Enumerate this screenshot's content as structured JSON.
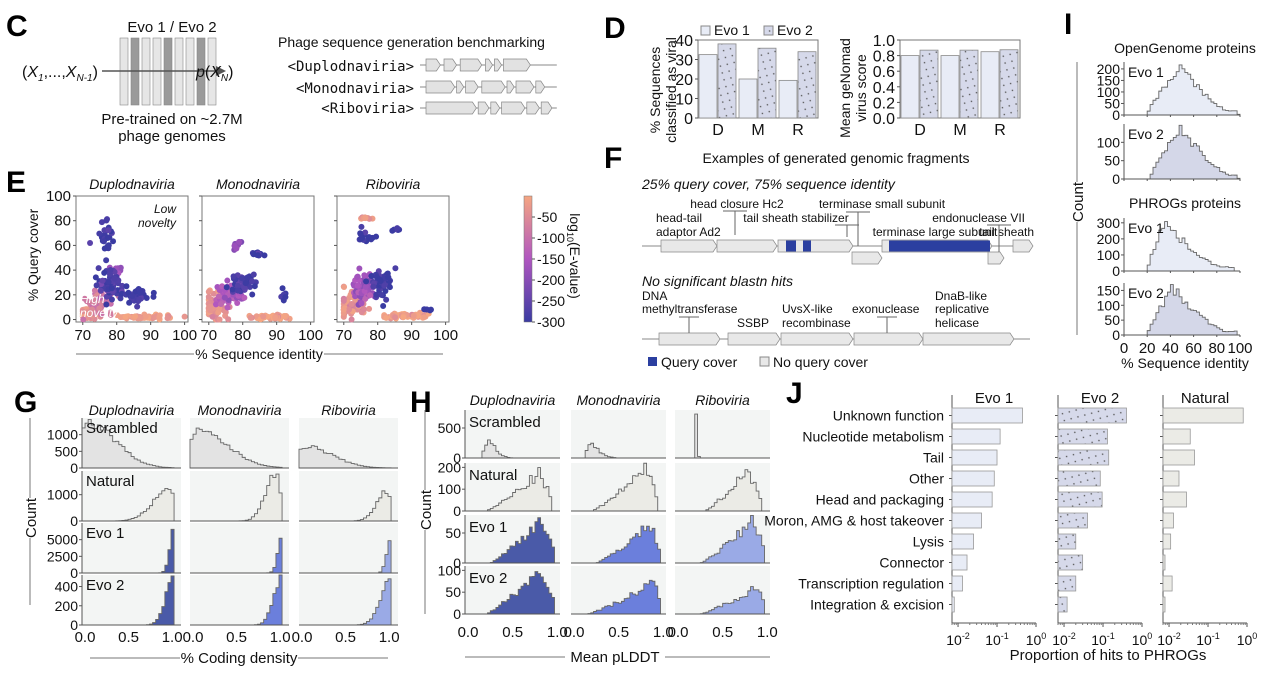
{
  "figure": {
    "panel_labels": [
      "C",
      "D",
      "E",
      "F",
      "G",
      "H",
      "I",
      "J"
    ]
  },
  "panel_c": {
    "model_label": "Evo 1 / Evo 2",
    "input_label": "(X1,...,XN-1)",
    "output_label": "p(XN)",
    "pretrain_line1": "Pre-trained on ~2.7M",
    "pretrain_line2": "phage genomes",
    "benchmark_title": "Phage sequence generation benchmarking",
    "tags": [
      "<Duplodnaviria>",
      "<Monodnaviria>",
      "<Riboviria>"
    ]
  },
  "colors": {
    "evo1_fill": "#e8ecf6",
    "evo2_fill": "#d4d7e8",
    "natural_fill": "#ebebe6",
    "scrambled_fill": "#e3e3e3",
    "query_cover": "#2b3fa0",
    "no_query_cover": "#e8e8e8",
    "panel_bg": "#f3f5f4",
    "g_evo_dark": "#4a5aa8",
    "g_evo_mid": "#6b7fdc",
    "g_evo_light": "#9aaae6",
    "cmap_high": "#f3a07e",
    "cmap_mid": "#a24fc2",
    "cmap_low": "#3b3aa0"
  },
  "chart_data": [
    {
      "panel": "D-left",
      "type": "bar",
      "categories": [
        "D",
        "M",
        "R"
      ],
      "series": [
        {
          "name": "Evo 1",
          "values": [
            32.5,
            20,
            19.3
          ]
        },
        {
          "name": "Evo 2",
          "values": [
            38,
            35.8,
            34
          ]
        }
      ],
      "ylabel": "% Sequences classified as viral",
      "ylim": [
        0,
        40
      ],
      "yticks": [
        0,
        10,
        20,
        30,
        40
      ],
      "legend": [
        "Evo 1",
        "Evo 2"
      ],
      "legend_position": "top"
    },
    {
      "panel": "D-right",
      "type": "bar",
      "categories": [
        "D",
        "M",
        "R"
      ],
      "series": [
        {
          "name": "Evo 1",
          "values": [
            0.8,
            0.8,
            0.85
          ]
        },
        {
          "name": "Evo 2",
          "values": [
            0.87,
            0.87,
            0.875
          ]
        }
      ],
      "ylabel": "Mean geNomad virus score",
      "ylim": [
        0,
        1.0
      ],
      "yticks": [
        "0.0",
        "0.2",
        "0.4",
        "0.6",
        "0.8",
        "1.0"
      ]
    },
    {
      "panel": "E",
      "type": "scatter",
      "subplots": [
        "Duplodnaviria",
        "Monodnaviria",
        "Riboviria"
      ],
      "xlabel": "% Sequence identity",
      "ylabel": "% Query cover",
      "xlim": [
        68,
        101
      ],
      "ylim": [
        -2,
        100
      ],
      "xticks": [
        70,
        80,
        90,
        100
      ],
      "yticks": [
        0,
        20,
        40,
        60,
        80,
        100
      ],
      "colorbar_label": "log10(E-value)",
      "colorbar_ticks": [
        -50,
        -100,
        -150,
        -200,
        -250,
        -300
      ],
      "colorbar_range": [
        -300,
        0
      ],
      "annotations": [
        "Low novelty",
        "High novelty"
      ],
      "clusters": [
        [
          {
            "x": 72,
            "y": 5,
            "spread_x": 3,
            "spread_y": 4,
            "c": -20,
            "n": 60
          },
          {
            "x": 75,
            "y": 15,
            "spread_x": 3,
            "spread_y": 8,
            "c": -80,
            "n": 60
          },
          {
            "x": 78,
            "y": 28,
            "spread_x": 3,
            "spread_y": 10,
            "c": -280,
            "n": 70
          },
          {
            "x": 77,
            "y": 65,
            "spread_x": 2,
            "spread_y": 15,
            "c": -290,
            "n": 30
          },
          {
            "x": 88,
            "y": 2,
            "spread_x": 7,
            "spread_y": 1.5,
            "c": -15,
            "n": 50
          },
          {
            "x": 86,
            "y": 20,
            "spread_x": 4,
            "spread_y": 5,
            "c": -295,
            "n": 30
          },
          {
            "x": 80,
            "y": 40,
            "spread_x": 1.5,
            "spread_y": 2,
            "c": -180,
            "n": 10
          }
        ],
        [
          {
            "x": 72,
            "y": 10,
            "spread_x": 3,
            "spread_y": 8,
            "c": -30,
            "n": 70
          },
          {
            "x": 76,
            "y": 20,
            "spread_x": 3,
            "spread_y": 8,
            "c": -150,
            "n": 60
          },
          {
            "x": 80,
            "y": 30,
            "spread_x": 3,
            "spread_y": 6,
            "c": -285,
            "n": 50
          },
          {
            "x": 85,
            "y": 53,
            "spread_x": 1.5,
            "spread_y": 1.5,
            "c": -300,
            "n": 12
          },
          {
            "x": 78,
            "y": 60,
            "spread_x": 1.5,
            "spread_y": 3,
            "c": -190,
            "n": 10
          },
          {
            "x": 88,
            "y": 2,
            "spread_x": 7,
            "spread_y": 1.5,
            "c": -15,
            "n": 50
          },
          {
            "x": 92,
            "y": 20,
            "spread_x": 1,
            "spread_y": 5,
            "c": -300,
            "n": 6
          }
        ],
        [
          {
            "x": 72,
            "y": 12,
            "spread_x": 3,
            "spread_y": 10,
            "c": -40,
            "n": 70
          },
          {
            "x": 76,
            "y": 25,
            "spread_x": 3,
            "spread_y": 10,
            "c": -170,
            "n": 60
          },
          {
            "x": 81,
            "y": 30,
            "spread_x": 3,
            "spread_y": 10,
            "c": -290,
            "n": 50
          },
          {
            "x": 76,
            "y": 68,
            "spread_x": 2,
            "spread_y": 5,
            "c": -290,
            "n": 15
          },
          {
            "x": 76,
            "y": 82,
            "spread_x": 1.5,
            "spread_y": 1,
            "c": -20,
            "n": 10
          },
          {
            "x": 85,
            "y": 73,
            "spread_x": 1,
            "spread_y": 1.5,
            "c": -300,
            "n": 6
          },
          {
            "x": 88,
            "y": 3,
            "spread_x": 7,
            "spread_y": 2,
            "c": -15,
            "n": 50
          },
          {
            "x": 95,
            "y": 8,
            "spread_x": 1,
            "spread_y": 0.5,
            "c": -300,
            "n": 5
          }
        ]
      ]
    },
    {
      "panel": "G",
      "type": "histogram",
      "columns": [
        "Duplodnaviria",
        "Monodnaviria",
        "Riboviria"
      ],
      "rows": [
        "Scrambled",
        "Natural",
        "Evo 1",
        "Evo 2"
      ],
      "xlabel": "% Coding density",
      "ylabel": "Count",
      "xlim": [
        0,
        1.0
      ],
      "xticks": [
        "0.0",
        "0.5",
        "1.0"
      ],
      "row_yticks": [
        [
          0,
          500,
          1000
        ],
        [
          0,
          1000
        ],
        [
          0,
          2500,
          5000
        ],
        [
          0,
          200,
          400
        ]
      ],
      "row_ymax": [
        1500,
        1900,
        7500,
        520
      ],
      "peaks": [
        [
          {
            "mu": 0.08,
            "sd": 0.12,
            "peak": 1350,
            "skew": "right"
          },
          {
            "mu": 0.1,
            "sd": 0.13,
            "peak": 1100,
            "skew": "right"
          },
          {
            "mu": 0.07,
            "sd": 0.12,
            "peak": 650,
            "skew": "right"
          }
        ],
        [
          {
            "mu": 0.95,
            "sd": 0.08,
            "peak": 1200,
            "skew": "left"
          },
          {
            "mu": 0.93,
            "sd": 0.05,
            "peak": 1800,
            "skew": "left"
          },
          {
            "mu": 0.95,
            "sd": 0.05,
            "peak": 1100,
            "skew": "left"
          }
        ],
        [
          {
            "mu": 1.0,
            "sd": 0.02,
            "peak": 7000,
            "skew": "left"
          },
          {
            "mu": 1.0,
            "sd": 0.02,
            "peak": 5500,
            "skew": "left"
          },
          {
            "mu": 1.0,
            "sd": 0.02,
            "peak": 5300,
            "skew": "left"
          }
        ],
        [
          {
            "mu": 1.0,
            "sd": 0.04,
            "peak": 500,
            "skew": "left"
          },
          {
            "mu": 1.0,
            "sd": 0.04,
            "peak": 500,
            "skew": "left"
          },
          {
            "mu": 1.0,
            "sd": 0.05,
            "peak": 460,
            "skew": "left"
          }
        ]
      ]
    },
    {
      "panel": "H",
      "type": "histogram",
      "columns": [
        "Duplodnaviria",
        "Monodnaviria",
        "Riboviria"
      ],
      "rows": [
        "Scrambled",
        "Natural",
        "Evo 1",
        "Evo 2"
      ],
      "xlabel": "Mean pLDDT",
      "ylabel": "Count",
      "xlim": [
        0,
        1.0
      ],
      "xticks": [
        "0.0",
        "0.5",
        "1.0"
      ],
      "row_yticks": [
        [
          0,
          500
        ],
        [
          0,
          100,
          200
        ],
        [
          0,
          50
        ],
        [
          0,
          50,
          100
        ]
      ],
      "row_ymax": [
        800,
        220,
        80,
        110
      ],
      "profiles": [
        [
          [
            0.15,
            0.25,
            300,
            0.55
          ],
          [
            0.12,
            0.2,
            270,
            0.55
          ],
          [
            0.18,
            0.2,
            780,
            0.25
          ]
        ],
        [
          [
            0.2,
            0.8,
            175,
            0.95
          ],
          [
            0.2,
            0.82,
            200,
            0.95
          ],
          [
            0.3,
            0.78,
            190,
            0.95
          ]
        ],
        [
          [
            0.25,
            0.82,
            75,
            0.98
          ],
          [
            0.25,
            0.85,
            65,
            0.98
          ],
          [
            0.25,
            0.85,
            73,
            0.98
          ]
        ],
        [
          [
            0.2,
            0.82,
            105,
            0.98
          ],
          [
            0.15,
            0.9,
            73,
            0.98
          ],
          [
            0.25,
            0.9,
            65,
            0.98
          ]
        ]
      ]
    },
    {
      "panel": "I",
      "type": "histogram",
      "groups": [
        "OpenGenome proteins",
        "PHROGs proteins"
      ],
      "rows": [
        "Evo 1",
        "Evo 2",
        "Evo 1",
        "Evo 2"
      ],
      "xlabel": "% Sequence identity",
      "ylabel": "Count",
      "xlim": [
        0,
        100
      ],
      "xticks": [
        0,
        20,
        40,
        60,
        80,
        100
      ],
      "row_yticks": [
        [
          0,
          50,
          100,
          150,
          200
        ],
        [
          0,
          50,
          100
        ],
        [
          0,
          100,
          200,
          300
        ],
        [
          0,
          50,
          100,
          150
        ]
      ],
      "row_ymax": [
        230,
        150,
        330,
        175
      ],
      "profiles": [
        [
          20,
          48,
          215,
          100
        ],
        [
          22,
          50,
          140,
          100
        ],
        [
          20,
          35,
          310,
          95
        ],
        [
          20,
          42,
          160,
          98
        ]
      ]
    },
    {
      "panel": "J",
      "type": "bar",
      "orientation": "horizontal",
      "categories": [
        "Unknown function",
        "Nucleotide metabolism",
        "Tail",
        "Other",
        "Head and packaging",
        "Moron, AMG & host takeover",
        "Lysis",
        "Connector",
        "Transcription regulation",
        "Integration & excision"
      ],
      "series": [
        {
          "name": "Evo 1",
          "values": [
            0.45,
            0.12,
            0.1,
            0.085,
            0.075,
            0.04,
            0.025,
            0.017,
            0.013,
            0.008
          ]
        },
        {
          "name": "Evo 2",
          "values": [
            0.4,
            0.13,
            0.14,
            0.085,
            0.095,
            0.04,
            0.02,
            0.03,
            0.02,
            0.012
          ]
        },
        {
          "name": "Natural",
          "values": [
            0.8,
            0.035,
            0.045,
            0.018,
            0.028,
            0.013,
            0.011,
            0.006,
            0.012,
            0.005
          ]
        }
      ],
      "xscale": "log",
      "xlim": [
        0.007,
        1.0
      ],
      "xticks": [
        "10^-2",
        "10^-1",
        "10^0"
      ],
      "xlabel": "Proportion of hits to PHROGs"
    }
  ],
  "panel_f": {
    "title": "Examples of generated genomic fragments",
    "example1_title": "25% query cover, 75% sequence identity",
    "example1_labels": [
      "head-tail",
      "adaptor Ad2",
      "head closure Hc2",
      "tail sheath stabilizer",
      "terminase small subunit",
      "terminase large subunit",
      "endonuclease VII",
      "tail sheath"
    ],
    "example2_title": "No significant blastn hits",
    "example2_labels": [
      "DNA",
      "methyltransferase",
      "SSBP",
      "UvsX-like",
      "recombinase",
      "exonuclease",
      "DnaB-like",
      "replicative",
      "helicase"
    ],
    "legend": [
      "Query cover",
      "No query cover"
    ]
  },
  "text": {
    "d_ylabel_1": "% Sequences",
    "d_ylabel_2": "classified as viral",
    "d2_ylabel_1": "Mean geNomad",
    "d2_ylabel_2": "virus score",
    "e_low_1": "Low",
    "e_low_2": "novelty",
    "e_high_1": "High",
    "e_high_2": "novelty",
    "count": "Count"
  }
}
